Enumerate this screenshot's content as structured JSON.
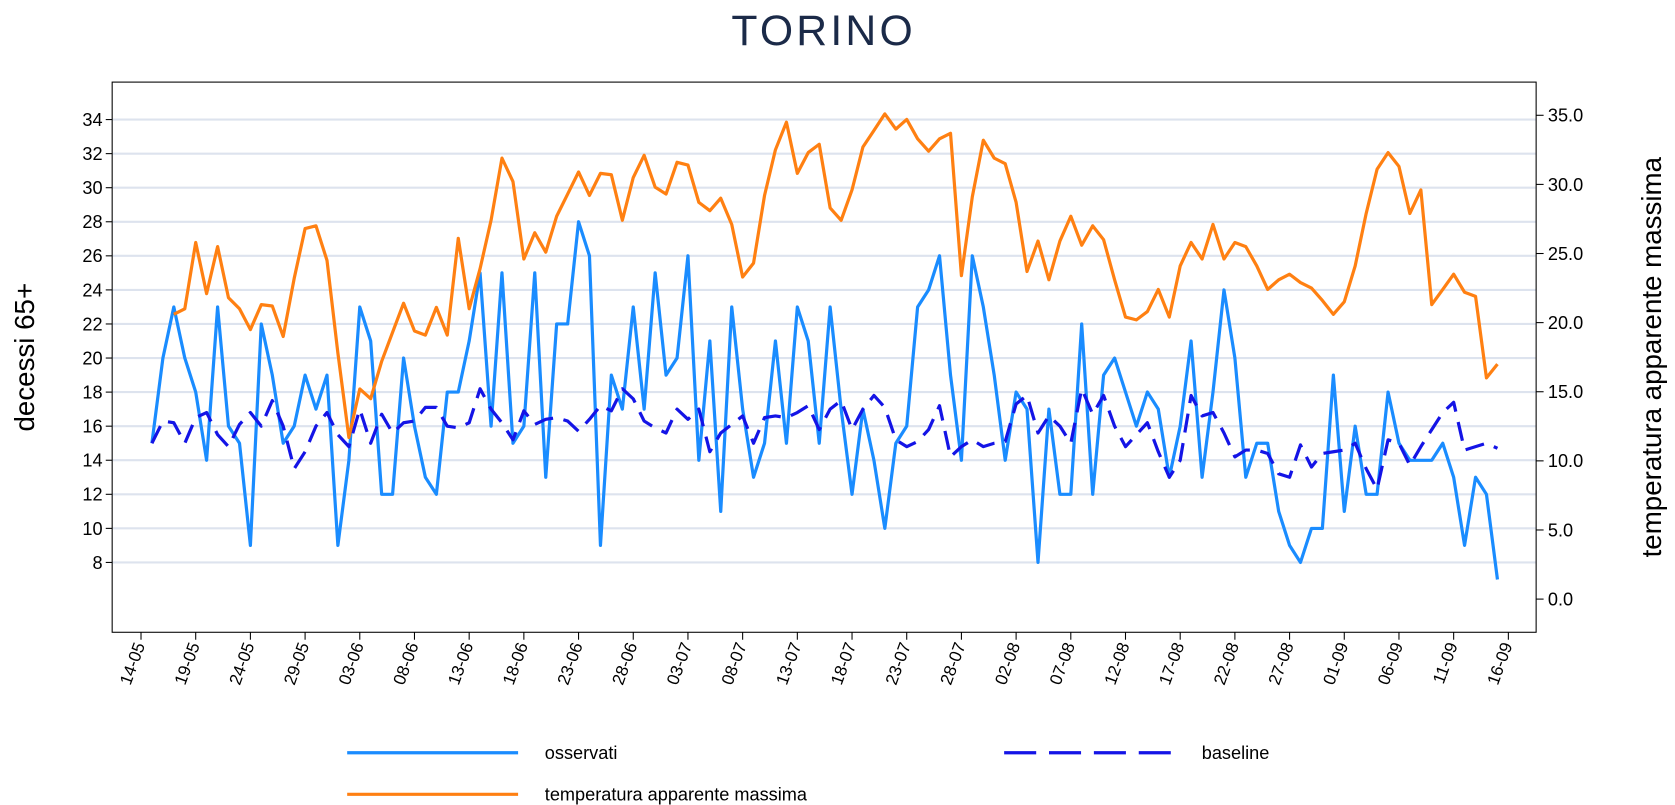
{
  "chart_data": {
    "type": "line",
    "title": "TORINO",
    "y_label": "decessi 65+",
    "y2_label": "temperatura apparente massima",
    "categories": [
      "14-05",
      null,
      null,
      null,
      null,
      "19-05",
      null,
      null,
      null,
      null,
      "24-05",
      null,
      null,
      null,
      null,
      "29-05",
      null,
      null,
      null,
      null,
      "03-06",
      null,
      null,
      null,
      null,
      "08-06",
      null,
      null,
      null,
      null,
      "13-06",
      null,
      null,
      null,
      null,
      "18-06",
      null,
      null,
      null,
      null,
      "23-06",
      null,
      null,
      null,
      null,
      "28-06",
      null,
      null,
      null,
      null,
      "03-07",
      null,
      null,
      null,
      null,
      "08-07",
      null,
      null,
      null,
      null,
      "13-07",
      null,
      null,
      null,
      null,
      "18-07",
      null,
      null,
      null,
      null,
      "23-07",
      null,
      null,
      null,
      null,
      "28-07",
      null,
      null,
      null,
      null,
      "02-08",
      null,
      null,
      null,
      null,
      "07-08",
      null,
      null,
      null,
      null,
      "12-08",
      null,
      null,
      null,
      null,
      "17-08",
      null,
      null,
      null,
      null,
      "22-08",
      null,
      null,
      null,
      null,
      "27-08",
      null,
      null,
      null,
      null,
      "01-09",
      null,
      null,
      null,
      null,
      "06-09",
      null,
      null,
      null,
      null,
      "11-09",
      null,
      null,
      null,
      null,
      "16-09"
    ],
    "ylim": [
      3.9,
      36.2
    ],
    "yticks": [
      8,
      10,
      12,
      14,
      16,
      18,
      20,
      22,
      24,
      26,
      28,
      30,
      32,
      34
    ],
    "y2lim": [
      -2.4,
      37.4
    ],
    "y2ticks": [
      {
        "value": 0,
        "label": "0.0"
      },
      {
        "value": 5,
        "label": "5.0"
      },
      {
        "value": 10,
        "label": "10.0"
      },
      {
        "value": 15,
        "label": "15.0"
      },
      {
        "value": 20,
        "label": "20.0"
      },
      {
        "value": 25,
        "label": "25.0"
      },
      {
        "value": 30,
        "label": "30.0"
      },
      {
        "value": 35,
        "label": "35.0"
      }
    ],
    "grid": true,
    "legend": "bottom",
    "series": [
      {
        "name": "osservati",
        "color": "#1a8cff",
        "style": "solid",
        "values": [
          null,
          15,
          20,
          23,
          20,
          18,
          14,
          23,
          16,
          15,
          9,
          22,
          19,
          15,
          16,
          19,
          17,
          19,
          9,
          14,
          23,
          21,
          12,
          12,
          20,
          16,
          13,
          12,
          18,
          18,
          21,
          25,
          16,
          25,
          15,
          16,
          25,
          13,
          22,
          22,
          28,
          26,
          9,
          19,
          17,
          23,
          17,
          25,
          19,
          20,
          26,
          14,
          21,
          11,
          23,
          17,
          13,
          15,
          21,
          15,
          23,
          21,
          15,
          23,
          17,
          12,
          17,
          14,
          10,
          15,
          16,
          23,
          24,
          26,
          19,
          14,
          26,
          23,
          19,
          14,
          18,
          17,
          8,
          17,
          12,
          12,
          22,
          12,
          19,
          20,
          18,
          16,
          18,
          17,
          13,
          16,
          21,
          13,
          18,
          24,
          20,
          13,
          15,
          15,
          11,
          9,
          8,
          10,
          10,
          19,
          11,
          16,
          12,
          12,
          18,
          15,
          14,
          14,
          14,
          15,
          13,
          9,
          13,
          12,
          7,
          null
        ]
      },
      {
        "name": "baseline",
        "color": "#1414e6",
        "style": "dashed",
        "values": [
          null,
          15,
          16.3,
          16.2,
          15,
          16.5,
          16.8,
          15.5,
          14.8,
          16.1,
          16.8,
          16,
          17.5,
          16,
          13.5,
          14.5,
          16,
          16.8,
          15.5,
          14.8,
          17,
          15,
          16.7,
          15.6,
          16.2,
          16.3,
          17.1,
          17.1,
          16,
          15.9,
          16.2,
          18.2,
          17,
          16.2,
          15.2,
          16.9,
          16.1,
          16.4,
          16.5,
          16.3,
          15.7,
          16.4,
          17.2,
          16.9,
          18.2,
          17.6,
          16.3,
          15.9,
          15.6,
          17,
          16.4,
          17,
          14.5,
          15.6,
          16.1,
          16.6,
          15,
          16.5,
          16.6,
          16.5,
          16.8,
          17.2,
          15.8,
          17,
          17.5,
          15.8,
          17,
          17.8,
          17.1,
          15.2,
          14.8,
          15.1,
          15.8,
          17.2,
          14.2,
          14.8,
          15.2,
          14.8,
          15,
          15.1,
          17.3,
          17.8,
          15.6,
          16.6,
          16,
          15,
          18.2,
          16.7,
          17.8,
          16,
          14.8,
          15.5,
          16.2,
          14.5,
          13,
          14,
          17.8,
          16.6,
          16.8,
          15.6,
          14.2,
          14.6,
          14.6,
          14.4,
          13.2,
          13,
          14.9,
          13.6,
          14.4,
          14.5,
          14.6,
          15,
          13.5,
          12.3,
          15.2,
          15,
          13.7,
          14.8,
          15.8,
          16.8,
          17.4,
          14.6,
          14.8,
          15,
          14.7,
          null
        ]
      },
      {
        "name": "temperatura apparente massima",
        "color": "#ff8012",
        "style": "solid",
        "axis": "y2",
        "values": [
          null,
          null,
          null,
          20.6,
          21,
          25.8,
          22.1,
          25.5,
          21.8,
          21,
          19.5,
          21.3,
          21.2,
          19,
          23.2,
          26.8,
          27,
          24.5,
          17.8,
          11.7,
          15.2,
          14.5,
          17.2,
          19.3,
          21.4,
          19.4,
          19.1,
          21.1,
          19.1,
          26.1,
          21,
          23.9,
          27.4,
          31.9,
          30.2,
          24.6,
          26.5,
          25.1,
          27.7,
          29.3,
          30.9,
          29.2,
          30.8,
          30.7,
          27.4,
          30.5,
          32.1,
          29.8,
          29.3,
          31.6,
          31.4,
          28.7,
          28.1,
          29,
          27.1,
          23.3,
          24.3,
          29.2,
          32.5,
          34.5,
          30.8,
          32.3,
          32.9,
          28.3,
          27.4,
          29.6,
          32.7,
          33.9,
          35.1,
          34,
          34.7,
          33.3,
          32.4,
          33.3,
          33.7,
          23.4,
          29.1,
          33.2,
          31.9,
          31.5,
          28.7,
          23.7,
          25.9,
          23.1,
          25.9,
          27.7,
          25.6,
          27,
          26,
          23.1,
          20.4,
          20.2,
          20.8,
          22.4,
          20.4,
          24.1,
          25.8,
          24.6,
          27.1,
          24.6,
          25.8,
          25.5,
          24.1,
          22.4,
          23.1,
          23.5,
          22.9,
          22.5,
          21.6,
          20.6,
          21.5,
          24.1,
          27.9,
          31.1,
          32.3,
          31.3,
          27.9,
          29.6,
          21.3,
          22.4,
          23.5,
          22.2,
          21.9,
          16,
          17,
          null
        ]
      }
    ]
  }
}
